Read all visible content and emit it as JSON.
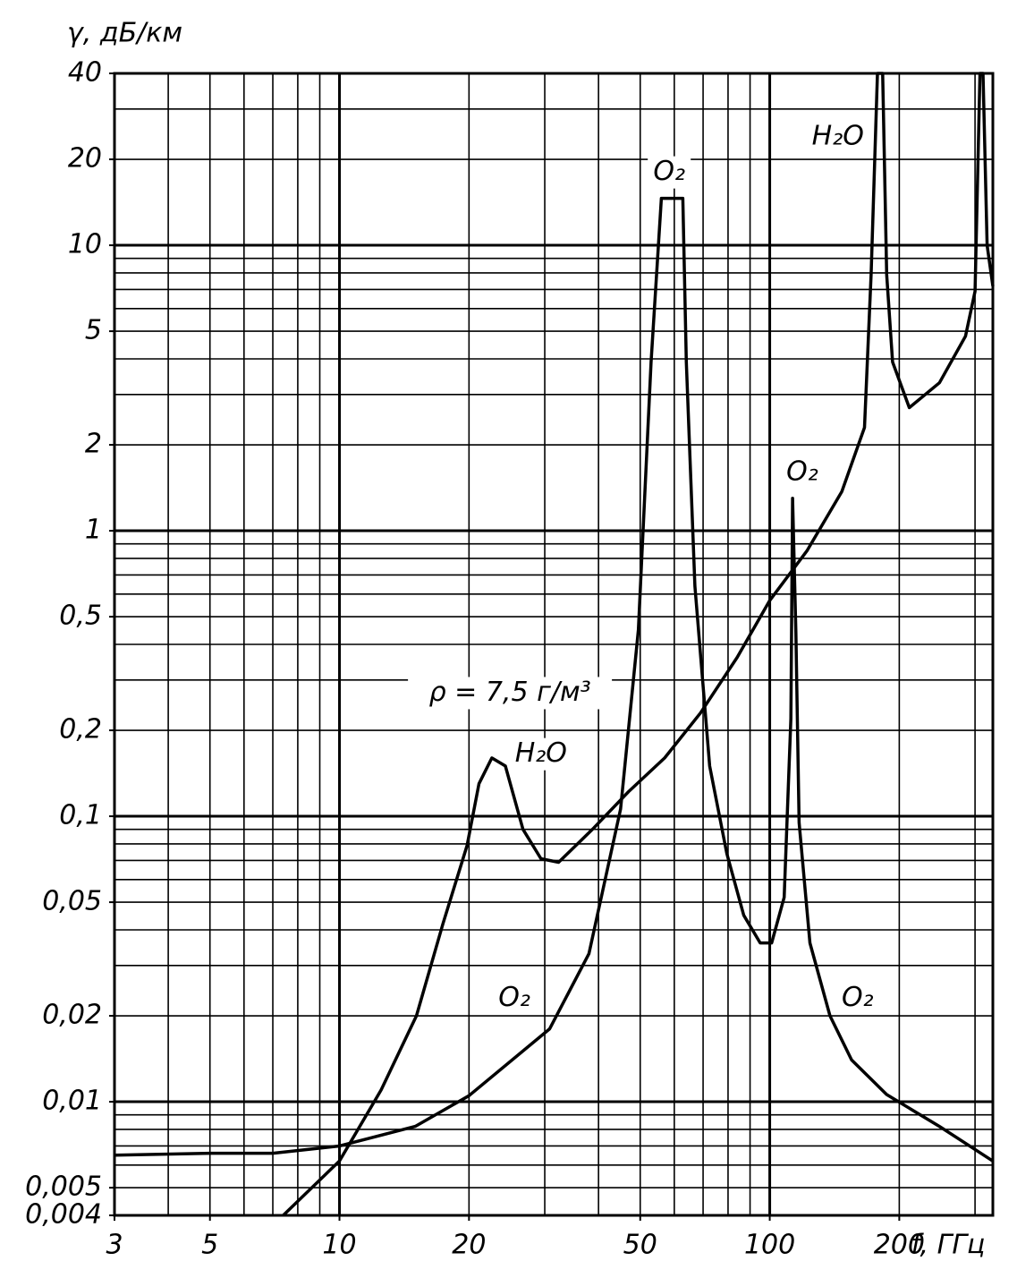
{
  "chart_data": {
    "type": "line",
    "y_label": "γ, дБ/км",
    "x_label": "f, ГГц",
    "log_x": true,
    "log_y": true,
    "grid": true,
    "xlim": [
      3,
      330
    ],
    "ylim": [
      0.004,
      40
    ],
    "xticks": [
      3,
      5,
      10,
      20,
      50,
      100,
      200
    ],
    "yticks": [
      40,
      20,
      10,
      5,
      2,
      1,
      {
        "value": 0.5,
        "label": "0,5"
      },
      {
        "value": 0.2,
        "label": "0,2"
      },
      {
        "value": 0.1,
        "label": "0,1"
      },
      {
        "value": 0.05,
        "label": "0,05"
      },
      {
        "value": 0.02,
        "label": "0,02"
      },
      {
        "value": 0.01,
        "label": "0,01"
      },
      {
        "value": 0.005,
        "label": "0,005"
      },
      {
        "value": 0.004,
        "label": "0,004"
      }
    ],
    "x_grid": [
      3,
      4,
      5,
      6,
      7,
      8,
      9,
      10,
      20,
      30,
      40,
      50,
      60,
      70,
      80,
      90,
      100,
      200,
      300
    ],
    "y_grid": [
      0.004,
      0.005,
      0.006,
      0.007,
      0.008,
      0.009,
      0.01,
      0.02,
      0.03,
      0.04,
      0.05,
      0.06,
      0.07,
      0.08,
      0.09,
      0.1,
      0.2,
      0.3,
      0.4,
      0.5,
      0.6,
      0.7,
      0.8,
      0.9,
      1,
      2,
      3,
      4,
      5,
      6,
      7,
      8,
      9,
      10,
      20,
      30,
      40
    ],
    "series": [
      {
        "color": "#000000",
        "x": [
          3,
          5,
          7,
          10,
          15,
          20,
          30.8,
          38,
          45,
          49.5,
          53,
          56,
          62.8,
          64,
          67,
          72.5,
          79.5,
          87,
          95,
          101,
          108,
          112,
          113,
          115,
          117,
          124,
          138,
          155,
          187,
          248,
          330
        ],
        "values": [
          0.0065,
          0.0066,
          0.0066,
          0.007,
          0.0082,
          0.0105,
          0.018,
          0.033,
          0.106,
          0.45,
          3.9,
          14.6,
          14.6,
          3.9,
          0.64,
          0.15,
          0.074,
          0.045,
          0.036,
          0.036,
          0.052,
          0.22,
          1.3,
          0.44,
          0.095,
          0.036,
          0.02,
          0.014,
          0.0106,
          0.0082,
          0.0062
        ]
      },
      {
        "color": "#000000",
        "x": [
          7.4,
          10,
          12.5,
          15.1,
          17.4,
          19.8,
          21.1,
          22.6,
          24.3,
          26.7,
          29.4,
          32.3,
          39,
          47,
          57,
          69,
          84,
          100,
          122,
          147,
          166,
          172,
          178,
          183,
          187,
          193,
          211,
          248,
          285,
          300,
          308,
          313,
          320,
          330
        ],
        "values": [
          0.004,
          0.0062,
          0.011,
          0.02,
          0.042,
          0.079,
          0.13,
          0.16,
          0.15,
          0.09,
          0.071,
          0.069,
          0.091,
          0.122,
          0.16,
          0.23,
          0.36,
          0.57,
          0.85,
          1.37,
          2.3,
          7.9,
          40,
          40,
          7.9,
          3.9,
          2.7,
          3.3,
          4.8,
          6.9,
          40,
          40,
          10,
          7.2
        ]
      }
    ],
    "annotations": [
      {
        "text": "O₂",
        "x": 58.4,
        "y": 18
      },
      {
        "text": "H₂O",
        "x": 144,
        "y": 24
      },
      {
        "text": "O₂",
        "x": 119,
        "y": 1.6
      },
      {
        "text": "H₂O",
        "x": 29.4,
        "y": 0.165
      },
      {
        "text": "O₂",
        "x": 25.5,
        "y": 0.023
      },
      {
        "text": "O₂",
        "x": 160,
        "y": 0.023
      },
      {
        "text": "ρ = 7,5 г/м³",
        "x": 24.9,
        "y": 0.27
      }
    ]
  }
}
